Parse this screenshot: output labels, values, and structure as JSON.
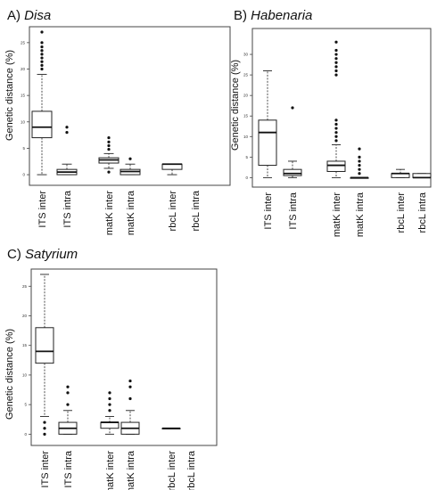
{
  "chart_data": [
    {
      "type": "box",
      "panel_letter": "A)",
      "title": "Disa",
      "ylabel": "Genetic distance (%)",
      "ylim": [
        -1,
        27
      ],
      "yticks": [
        0,
        5,
        10,
        15,
        20,
        25
      ],
      "categories": [
        "ITS inter",
        "ITS intra",
        "matK inter",
        "matK intra",
        "rbcL inter",
        "rbcL intra"
      ],
      "boxes": [
        {
          "category": "ITS inter",
          "min": 0,
          "q1": 7,
          "median": 9,
          "q3": 12,
          "max": 19,
          "outliers": [
            20,
            20.7,
            21.4,
            22.1,
            22.8,
            23.5,
            24.2,
            25,
            27
          ]
        },
        {
          "category": "ITS intra",
          "min": 0,
          "q1": 0,
          "median": 0.5,
          "q3": 1,
          "max": 2,
          "outliers": [
            8,
            9
          ]
        },
        {
          "category": "matK inter",
          "min": 1.2,
          "q1": 2.2,
          "median": 2.8,
          "q3": 3.2,
          "max": 4,
          "outliers": [
            0.5,
            4.8,
            5.5,
            6.2,
            7
          ]
        },
        {
          "category": "matK intra",
          "min": 0,
          "q1": 0,
          "median": 0.6,
          "q3": 1,
          "max": 2,
          "outliers": [
            3
          ]
        },
        {
          "category": "rbcL inter",
          "min": 0,
          "q1": 1,
          "median": 2,
          "q3": 2,
          "max": 2,
          "outliers": []
        },
        {
          "category": "rbcL intra",
          "empty": true
        }
      ]
    },
    {
      "type": "box",
      "panel_letter": "B)",
      "title": "Habenaria",
      "ylabel": "Genetic distance (%)",
      "ylim": [
        -1,
        35
      ],
      "yticks": [
        0,
        5,
        10,
        15,
        20,
        25,
        30
      ],
      "categories": [
        "ITS inter",
        "ITS intra",
        "matK inter",
        "matK intra",
        "rbcL inter",
        "rbcL intra"
      ],
      "boxes": [
        {
          "category": "ITS inter",
          "min": 0,
          "q1": 3,
          "median": 11,
          "q3": 14,
          "max": 26,
          "outliers": []
        },
        {
          "category": "ITS intra",
          "min": 0,
          "q1": 0.5,
          "median": 1,
          "q3": 2,
          "max": 4,
          "outliers": [
            17
          ]
        },
        {
          "category": "matK inter",
          "min": 0,
          "q1": 1.5,
          "median": 3,
          "q3": 4,
          "max": 8,
          "outliers": [
            9,
            10,
            11,
            12,
            13,
            14,
            25,
            26,
            27,
            28,
            29,
            30,
            31,
            33
          ]
        },
        {
          "category": "matK intra",
          "min": 0,
          "q1": 0,
          "median": 0,
          "q3": 0,
          "max": 0,
          "outliers": [
            1,
            2,
            3,
            4,
            5,
            7
          ]
        },
        {
          "category": "rbcL inter",
          "min": 0,
          "q1": 0,
          "median": 1,
          "q3": 1,
          "max": 2,
          "outliers": []
        },
        {
          "category": "rbcL intra",
          "min": 0,
          "q1": 0,
          "median": 0,
          "q3": 1,
          "max": 1,
          "outliers": []
        }
      ]
    },
    {
      "type": "box",
      "panel_letter": "C)",
      "title": "Satyrium",
      "ylabel": "Genetic distance (%)",
      "ylim": [
        -1,
        27
      ],
      "yticks": [
        0,
        5,
        10,
        15,
        20,
        25
      ],
      "categories": [
        "ITS inter",
        "ITS intra",
        "matK inter",
        "matK intra",
        "rbcL inter",
        "rbcL intra"
      ],
      "boxes": [
        {
          "category": "ITS inter",
          "min": 3,
          "q1": 12,
          "median": 14,
          "q3": 18,
          "max": 27,
          "outliers": [
            0,
            1,
            2
          ]
        },
        {
          "category": "ITS intra",
          "min": 0,
          "q1": 0,
          "median": 1,
          "q3": 2,
          "max": 4,
          "outliers": [
            5,
            7,
            8
          ]
        },
        {
          "category": "matK inter",
          "min": 0,
          "q1": 1,
          "median": 2,
          "q3": 2,
          "max": 3,
          "outliers": [
            4,
            5,
            6,
            7
          ]
        },
        {
          "category": "matK intra",
          "min": 0,
          "q1": 0,
          "median": 1,
          "q3": 2,
          "max": 4,
          "outliers": [
            6,
            8,
            9
          ]
        },
        {
          "category": "rbcL inter",
          "min": 1,
          "q1": 1,
          "median": 1,
          "q3": 1,
          "max": 1,
          "outliers": []
        },
        {
          "category": "rbcL intra",
          "empty": true
        }
      ]
    }
  ]
}
